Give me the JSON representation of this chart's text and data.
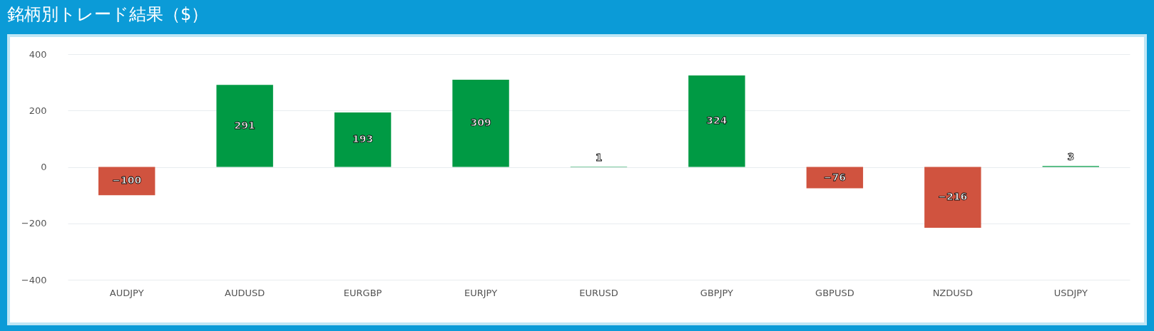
{
  "chart_data": {
    "type": "bar",
    "title": "銘柄別トレード結果（$）",
    "categories": [
      "AUDJPY",
      "AUDUSD",
      "EURGBP",
      "EURJPY",
      "EURUSD",
      "GBPJPY",
      "GBPUSD",
      "NZDUSD",
      "USDJPY"
    ],
    "values": [
      -100,
      291,
      193,
      309,
      1,
      324,
      -76,
      -216,
      3
    ],
    "colors": [
      "#d0533f",
      "#009a44",
      "#009a44",
      "#009a44",
      "#009a44",
      "#009a44",
      "#d0533f",
      "#d0533f",
      "#009a44"
    ],
    "ylim": [
      -400,
      400
    ],
    "yticks": [
      -400,
      -200,
      0,
      200,
      400
    ],
    "grid": "y",
    "data_labels": true
  }
}
